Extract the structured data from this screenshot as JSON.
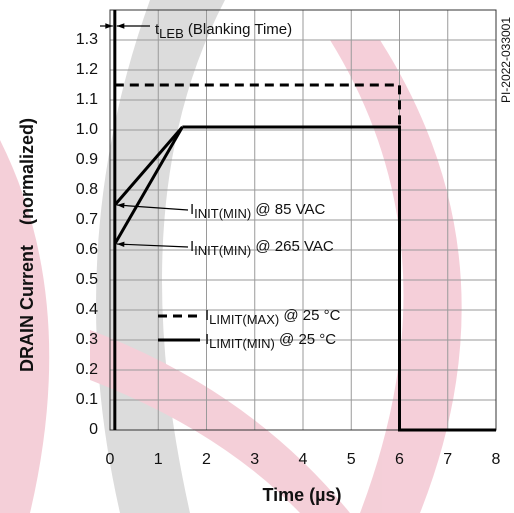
{
  "chart_data": {
    "type": "line",
    "x_label": "Time (µs)",
    "y_label": "DRAIN Current    (normalized)",
    "figure_id": "PI-2022-033001",
    "xlim": [
      0,
      8
    ],
    "xticks": [
      0,
      1,
      2,
      3,
      4,
      5,
      6,
      7,
      8
    ],
    "ylim": [
      0,
      1.4
    ],
    "yticks": [
      0,
      0.1,
      0.2,
      0.3,
      0.4,
      0.5,
      0.6,
      0.7,
      0.8,
      0.9,
      {
        "value": 1,
        "label": "1.0"
      },
      1.1,
      1.2,
      1.3
    ],
    "grid": true,
    "series": [
      {
        "label": {
          "main": "I",
          "sub": "LIMIT(MAX)",
          "rest": " @ 25 °C"
        },
        "color": "#000000",
        "dash": true,
        "x": [
          0.1,
          6,
          6
        ],
        "values": [
          1.15,
          1.15,
          0
        ]
      },
      {
        "label": {
          "main": "I",
          "sub": "LIMIT(MIN)",
          "rest": " @ 25 °C"
        },
        "color": "#000000",
        "dash": false,
        "x": [
          1.5,
          6,
          6,
          8
        ],
        "values": [
          1.01,
          1.01,
          0,
          0
        ]
      },
      {
        "label": {
          "main": "I",
          "sub": "INIT(MIN)",
          "rest": " @ 85 VAC"
        },
        "color": "#000000",
        "dash": false,
        "x": [
          0.1,
          1.5
        ],
        "values": [
          0.75,
          1.01
        ]
      },
      {
        "label": {
          "main": "I",
          "sub": "INIT(MIN)",
          "rest": " @ 265 VAC"
        },
        "color": "#000000",
        "dash": false,
        "x": [
          0.1,
          1.5
        ],
        "values": [
          0.62,
          1.01
        ]
      }
    ],
    "blanking": {
      "x": 0.1,
      "main": "t",
      "sub": "LEB",
      "rest": " (Blanking Time)"
    }
  }
}
